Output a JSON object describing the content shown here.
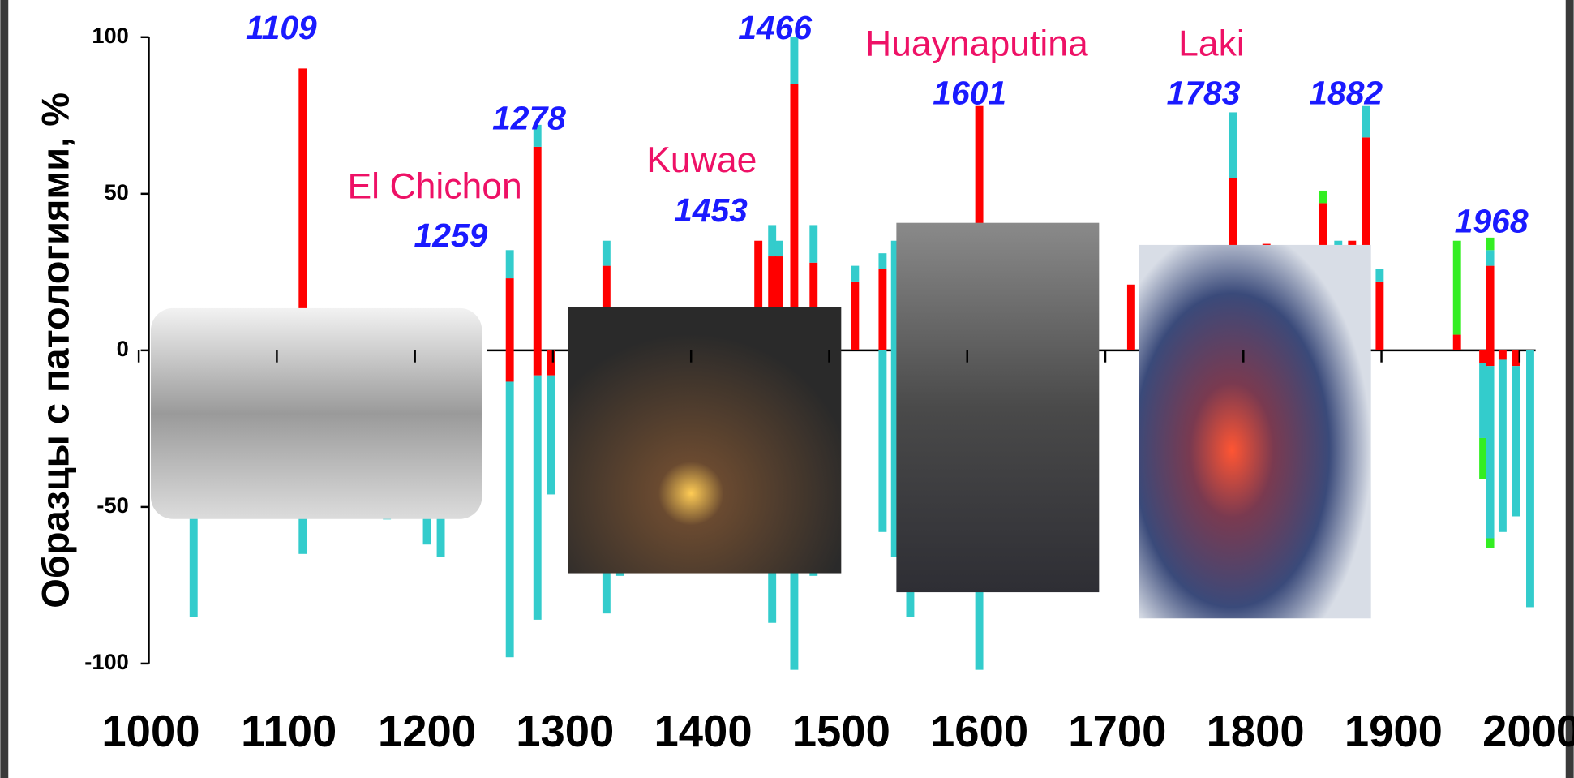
{
  "chart_data": {
    "type": "bar",
    "ylabel": "Образцы с патологиями, %",
    "x": [
      1031,
      1110,
      1171,
      1200,
      1210,
      1260,
      1280,
      1290,
      1330,
      1340,
      1440,
      1450,
      1455,
      1466,
      1480,
      1510,
      1530,
      1539,
      1550,
      1600,
      1710,
      1784,
      1808,
      1849,
      1860,
      1870,
      1880,
      1890,
      1946,
      1965,
      1970,
      1979,
      1989,
      1999
    ],
    "series": [
      {
        "color": "#ff0000",
        "values": [
          null,
          90,
          null,
          null,
          null,
          23,
          65,
          null,
          27,
          null,
          35,
          30,
          30,
          85,
          28,
          22,
          26,
          null,
          null,
          78,
          21,
          55,
          34,
          47,
          null,
          35,
          68,
          22,
          5,
          null,
          27,
          null,
          null,
          null
        ]
      },
      {
        "color": "#33cccc",
        "values": [
          null,
          null,
          null,
          null,
          null,
          9,
          7,
          null,
          8,
          null,
          null,
          10,
          5,
          15,
          12,
          5,
          5,
          35,
          null,
          null,
          null,
          21,
          null,
          null,
          35,
          null,
          10,
          4,
          null,
          null,
          5,
          null,
          null,
          null
        ]
      },
      {
        "color": "#33ee22",
        "values": [
          null,
          null,
          null,
          null,
          null,
          null,
          null,
          null,
          null,
          null,
          null,
          null,
          null,
          null,
          null,
          null,
          null,
          null,
          null,
          null,
          null,
          null,
          null,
          4,
          null,
          null,
          null,
          null,
          30,
          null,
          4,
          null,
          null,
          null
        ]
      },
      {
        "color": "#ff0000",
        "values": [
          null,
          null,
          null,
          null,
          null,
          -10,
          -8,
          -8,
          null,
          null,
          null,
          null,
          null,
          null,
          null,
          null,
          null,
          null,
          null,
          null,
          null,
          null,
          null,
          null,
          null,
          null,
          null,
          null,
          null,
          -4,
          -5,
          -3,
          -5,
          null
        ]
      },
      {
        "color": "#33cccc",
        "values": [
          -85,
          -65,
          -54,
          -62,
          -66,
          -88,
          -78,
          -38,
          -84,
          -72,
          null,
          -87,
          null,
          -102,
          -72,
          null,
          -58,
          -66,
          -85,
          -102,
          null,
          null,
          null,
          null,
          null,
          null,
          null,
          null,
          null,
          -24,
          -55,
          -55,
          -48,
          -82
        ]
      },
      {
        "color": "#33ee22",
        "values": [
          null,
          null,
          null,
          null,
          null,
          null,
          null,
          null,
          null,
          null,
          null,
          null,
          null,
          null,
          null,
          null,
          null,
          null,
          null,
          null,
          null,
          null,
          null,
          null,
          null,
          null,
          null,
          null,
          null,
          -13,
          -3,
          null,
          null,
          null
        ]
      }
    ],
    "xlim": [
      1000,
      2000
    ],
    "xticks": [
      1000,
      1100,
      1200,
      1300,
      1400,
      1500,
      1600,
      1700,
      1800,
      1900,
      2000
    ],
    "ylim": [
      -100,
      100
    ],
    "yticks": [
      -100,
      -50,
      0,
      50,
      100
    ],
    "annotations": [
      "1109",
      "1278",
      "El Chichon",
      "1259",
      "Kuwae",
      "1453",
      "1466",
      "Huaynaputina",
      "1601",
      "Laki",
      "1783",
      "1882",
      "1968"
    ]
  }
}
